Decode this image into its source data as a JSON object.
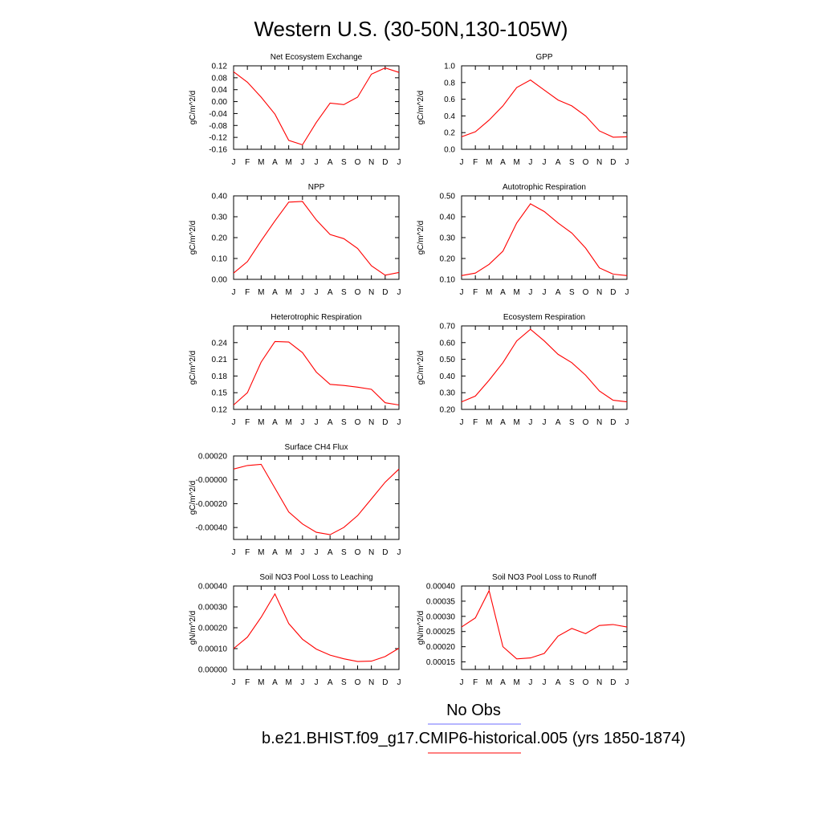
{
  "page_title": "Western U.S. (30-50N,130-105W)",
  "legend": {
    "obs_label": "No Obs",
    "obs_color": "#6c6cff",
    "model_label": "b.e21.BHIST.f09_g17.CMIP6-historical.005 (yrs 1850-1874)",
    "model_color": "#ff0000"
  },
  "chart_data": [
    {
      "type": "line",
      "title": "Net Ecosystem Exchange",
      "ylabel": "gC/m^2/d",
      "categories": [
        "J",
        "F",
        "M",
        "A",
        "M",
        "J",
        "J",
        "A",
        "S",
        "O",
        "N",
        "D",
        "J"
      ],
      "ylim": [
        -0.16,
        0.12
      ],
      "yticks": [
        "0.12",
        "0.08",
        "0.04",
        "0.00",
        "-0.04",
        "-0.08",
        "-0.12",
        "-0.16"
      ],
      "series": [
        {
          "values": [
            0.1,
            0.065,
            0.015,
            -0.042,
            -0.13,
            -0.145,
            -0.07,
            -0.005,
            -0.01,
            0.015,
            0.092,
            0.113,
            0.098
          ]
        }
      ]
    },
    {
      "type": "line",
      "title": "GPP",
      "ylabel": "gC/m^2/d",
      "categories": [
        "J",
        "F",
        "M",
        "A",
        "M",
        "J",
        "J",
        "A",
        "S",
        "O",
        "N",
        "D",
        "J"
      ],
      "ylim": [
        0.0,
        1.0
      ],
      "yticks": [
        "1.0",
        "0.8",
        "0.6",
        "0.4",
        "0.2",
        "0.0"
      ],
      "series": [
        {
          "values": [
            0.15,
            0.21,
            0.35,
            0.52,
            0.74,
            0.83,
            0.71,
            0.59,
            0.52,
            0.4,
            0.22,
            0.145,
            0.15
          ]
        }
      ]
    },
    {
      "type": "line",
      "title": "NPP",
      "ylabel": "gC/m^2/d",
      "categories": [
        "J",
        "F",
        "M",
        "A",
        "M",
        "J",
        "J",
        "A",
        "S",
        "O",
        "N",
        "D",
        "J"
      ],
      "ylim": [
        0.0,
        0.4
      ],
      "yticks": [
        "0.40",
        "0.30",
        "0.20",
        "0.10",
        "0.00"
      ],
      "series": [
        {
          "values": [
            0.03,
            0.085,
            0.185,
            0.28,
            0.37,
            0.373,
            0.285,
            0.215,
            0.195,
            0.148,
            0.065,
            0.02,
            0.033
          ]
        }
      ]
    },
    {
      "type": "line",
      "title": "Autotrophic Respiration",
      "ylabel": "gC/m^2/d",
      "categories": [
        "J",
        "F",
        "M",
        "A",
        "M",
        "J",
        "J",
        "A",
        "S",
        "O",
        "N",
        "D",
        "J"
      ],
      "ylim": [
        0.1,
        0.5
      ],
      "yticks": [
        "0.50",
        "0.40",
        "0.30",
        "0.20",
        "0.10"
      ],
      "series": [
        {
          "values": [
            0.118,
            0.13,
            0.172,
            0.235,
            0.37,
            0.462,
            0.425,
            0.37,
            0.322,
            0.25,
            0.155,
            0.125,
            0.118
          ]
        }
      ]
    },
    {
      "type": "line",
      "title": "Heterotrophic Respiration",
      "ylabel": "gC/m^2/d",
      "categories": [
        "J",
        "F",
        "M",
        "A",
        "M",
        "J",
        "J",
        "A",
        "S",
        "O",
        "N",
        "D",
        "J"
      ],
      "ylim": [
        0.12,
        0.27
      ],
      "yticks": [
        "0.24",
        "0.21",
        "0.18",
        "0.15",
        "0.12"
      ],
      "series": [
        {
          "values": [
            0.128,
            0.15,
            0.205,
            0.242,
            0.241,
            0.222,
            0.187,
            0.165,
            0.163,
            0.16,
            0.156,
            0.132,
            0.128
          ]
        }
      ]
    },
    {
      "type": "line",
      "title": "Ecosystem Respiration",
      "ylabel": "gC/m^2/d",
      "categories": [
        "J",
        "F",
        "M",
        "A",
        "M",
        "J",
        "J",
        "A",
        "S",
        "O",
        "N",
        "D",
        "J"
      ],
      "ylim": [
        0.2,
        0.7
      ],
      "yticks": [
        "0.70",
        "0.60",
        "0.50",
        "0.40",
        "0.30",
        "0.20"
      ],
      "series": [
        {
          "values": [
            0.245,
            0.28,
            0.375,
            0.48,
            0.61,
            0.68,
            0.61,
            0.53,
            0.48,
            0.405,
            0.31,
            0.255,
            0.245
          ]
        }
      ]
    },
    {
      "type": "line",
      "title": "Surface CH4 Flux",
      "ylabel": "gC/m^2/d",
      "categories": [
        "J",
        "F",
        "M",
        "A",
        "M",
        "J",
        "J",
        "A",
        "S",
        "O",
        "N",
        "D",
        "J"
      ],
      "ylim": [
        -0.0005,
        0.0002
      ],
      "yticks": [
        "0.00020",
        "-0.00000",
        "-0.00020",
        "-0.00040"
      ],
      "ytick_values": [
        0.0002,
        0.0,
        -0.0002,
        -0.0004
      ],
      "series": [
        {
          "values": [
            9e-05,
            0.00012,
            0.00013,
            -7e-05,
            -0.00027,
            -0.00037,
            -0.00044,
            -0.00046,
            -0.0004,
            -0.0003,
            -0.00016,
            -2e-05,
            9e-05
          ]
        }
      ]
    },
    {
      "type": "line",
      "title": "Soil NO3 Pool Loss to Leaching",
      "ylabel": "gN/m^2/d",
      "categories": [
        "J",
        "F",
        "M",
        "A",
        "M",
        "J",
        "J",
        "A",
        "S",
        "O",
        "N",
        "D",
        "J"
      ],
      "ylim": [
        0.0,
        0.0004
      ],
      "yticks": [
        "0.00040",
        "0.00030",
        "0.00020",
        "0.00010",
        "0.00000"
      ],
      "series": [
        {
          "values": [
            0.0001,
            0.000155,
            0.00025,
            0.000362,
            0.00022,
            0.000145,
            9.75e-05,
            6.9e-05,
            5.1e-05,
            3.8e-05,
            4e-05,
            6.2e-05,
            0.000102
          ]
        }
      ]
    },
    {
      "type": "line",
      "title": "Soil NO3 Pool Loss to Runoff",
      "ylabel": "gN/m^2/d",
      "categories": [
        "J",
        "F",
        "M",
        "A",
        "M",
        "J",
        "J",
        "A",
        "S",
        "O",
        "N",
        "D",
        "J"
      ],
      "ylim": [
        0.000125,
        0.0004
      ],
      "yticks": [
        "0.00040",
        "0.00035",
        "0.00030",
        "0.00025",
        "0.00020",
        "0.00015"
      ],
      "ytick_values": [
        0.0004,
        0.00035,
        0.0003,
        0.00025,
        0.0002,
        0.00015
      ],
      "series": [
        {
          "values": [
            0.000265,
            0.000295,
            0.000385,
            0.0002,
            0.00016,
            0.000163,
            0.000178,
            0.000235,
            0.00026,
            0.000243,
            0.00027,
            0.000273,
            0.000265
          ]
        }
      ]
    }
  ]
}
